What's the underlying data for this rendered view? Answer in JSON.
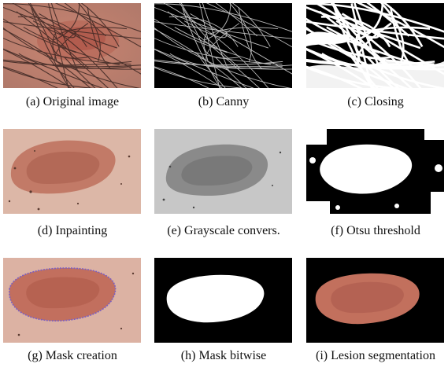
{
  "figure": {
    "panels": [
      {
        "caption": "(a) Original image"
      },
      {
        "caption": "(b) Canny"
      },
      {
        "caption": "(c) Closing"
      },
      {
        "caption": "(d) Inpainting"
      },
      {
        "caption": "(e) Grayscale convers."
      },
      {
        "caption": "(f) Otsu threshold"
      },
      {
        "caption": "(g) Mask creation"
      },
      {
        "caption": "(h) Mask bitwise"
      },
      {
        "caption": "(i) Lesion segmentation"
      }
    ]
  }
}
